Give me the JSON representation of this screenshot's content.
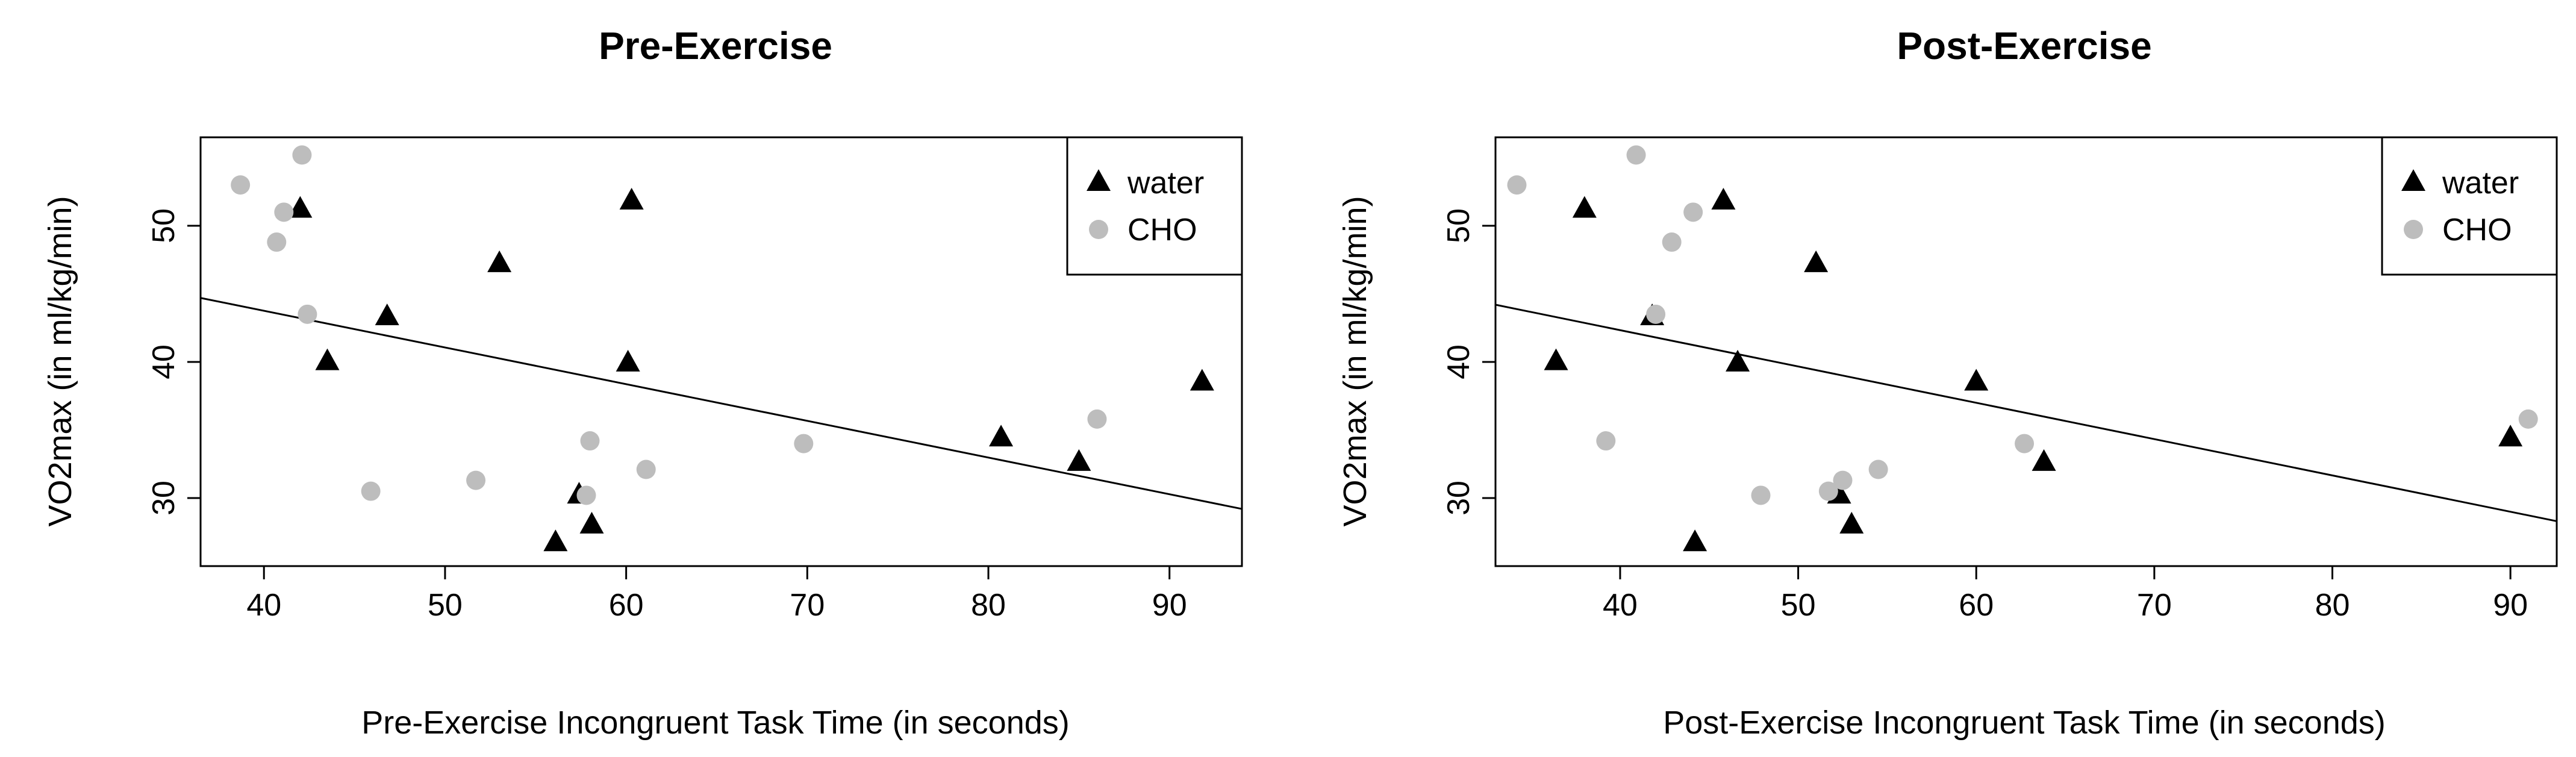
{
  "chart_data": [
    {
      "type": "scatter",
      "title": "Pre-Exercise",
      "xlabel": "Pre-Exercise Incongruent Task Time (in seconds)",
      "ylabel": "VO2max (in ml/kg/min)",
      "xlim": [
        36.5,
        94
      ],
      "ylim": [
        25,
        56.5
      ],
      "xticks": [
        40,
        50,
        60,
        70,
        80,
        90
      ],
      "yticks": [
        30,
        40,
        50
      ],
      "legend": {
        "position": "top-right",
        "entries": [
          "water",
          "CHO"
        ]
      },
      "series": [
        {
          "name": "water",
          "marker": "triangle",
          "color": "#000000",
          "points": [
            [
              42.0,
              51.2
            ],
            [
              60.3,
              51.8
            ],
            [
              53.0,
              47.2
            ],
            [
              46.8,
              43.3
            ],
            [
              43.5,
              40.0
            ],
            [
              60.1,
              39.9
            ],
            [
              91.8,
              38.5
            ],
            [
              80.7,
              34.4
            ],
            [
              85.0,
              32.6
            ],
            [
              57.4,
              30.2
            ],
            [
              58.1,
              28.0
            ],
            [
              56.1,
              26.7
            ]
          ]
        },
        {
          "name": "CHO",
          "marker": "circle",
          "color": "#bdbdbd",
          "points": [
            [
              38.7,
              53.0
            ],
            [
              42.1,
              55.2
            ],
            [
              41.1,
              51.0
            ],
            [
              40.7,
              48.8
            ],
            [
              42.4,
              43.5
            ],
            [
              86.0,
              35.8
            ],
            [
              58.0,
              34.2
            ],
            [
              69.8,
              34.0
            ],
            [
              61.1,
              32.1
            ],
            [
              51.7,
              31.3
            ],
            [
              45.9,
              30.5
            ],
            [
              57.8,
              30.2
            ]
          ]
        }
      ],
      "fit_line": {
        "x": [
          36.5,
          94
        ],
        "y": [
          44.7,
          29.2
        ]
      }
    },
    {
      "type": "scatter",
      "title": "Post-Exercise",
      "xlabel": "Post-Exercise Incongruent Task Time (in seconds)",
      "ylabel": "VO2max (in ml/kg/min)",
      "xlim": [
        33,
        92.6
      ],
      "ylim": [
        25,
        56.5
      ],
      "xticks": [
        40,
        50,
        60,
        70,
        80,
        90
      ],
      "yticks": [
        30,
        40,
        50
      ],
      "legend": {
        "position": "top-right",
        "entries": [
          "water",
          "CHO"
        ]
      },
      "series": [
        {
          "name": "water",
          "marker": "triangle",
          "color": "#000000",
          "points": [
            [
              45.8,
              51.8
            ],
            [
              38.0,
              51.2
            ],
            [
              51.0,
              47.2
            ],
            [
              41.8,
              43.3
            ],
            [
              36.4,
              40.0
            ],
            [
              46.6,
              39.9
            ],
            [
              60.0,
              38.5
            ],
            [
              90.0,
              34.4
            ],
            [
              63.8,
              32.6
            ],
            [
              52.3,
              30.2
            ],
            [
              53.0,
              28.0
            ],
            [
              44.2,
              26.7
            ]
          ]
        },
        {
          "name": "CHO",
          "marker": "circle",
          "color": "#bdbdbd",
          "points": [
            [
              34.2,
              53.0
            ],
            [
              40.9,
              55.2
            ],
            [
              44.1,
              51.0
            ],
            [
              42.9,
              48.8
            ],
            [
              42.0,
              43.5
            ],
            [
              91.0,
              35.8
            ],
            [
              39.2,
              34.2
            ],
            [
              62.7,
              34.0
            ],
            [
              54.5,
              32.1
            ],
            [
              52.5,
              31.3
            ],
            [
              51.7,
              30.5
            ],
            [
              47.9,
              30.2
            ]
          ]
        }
      ],
      "fit_line": {
        "x": [
          33,
          92.6
        ],
        "y": [
          44.2,
          28.3
        ]
      }
    }
  ]
}
